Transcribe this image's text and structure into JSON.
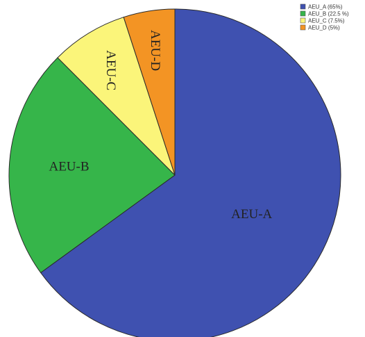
{
  "chart_data": {
    "type": "pie",
    "slices": [
      {
        "label": "AEU-A",
        "value": 65,
        "color": "#3f51b0",
        "legend": "AEU_A (65%)"
      },
      {
        "label": "AEU-B",
        "value": 22.5,
        "color": "#36b54a",
        "legend": "AEU_B (22.5 %)"
      },
      {
        "label": "AEU-C",
        "value": 7.5,
        "color": "#fbf57a",
        "legend": "AEU_C (7.5%)"
      },
      {
        "label": "AEU-D",
        "value": 5,
        "color": "#f39424",
        "legend": "AEU_D (5%)"
      }
    ],
    "start": "12 o'clock",
    "direction": "clockwise",
    "legend_position": "top-right"
  }
}
